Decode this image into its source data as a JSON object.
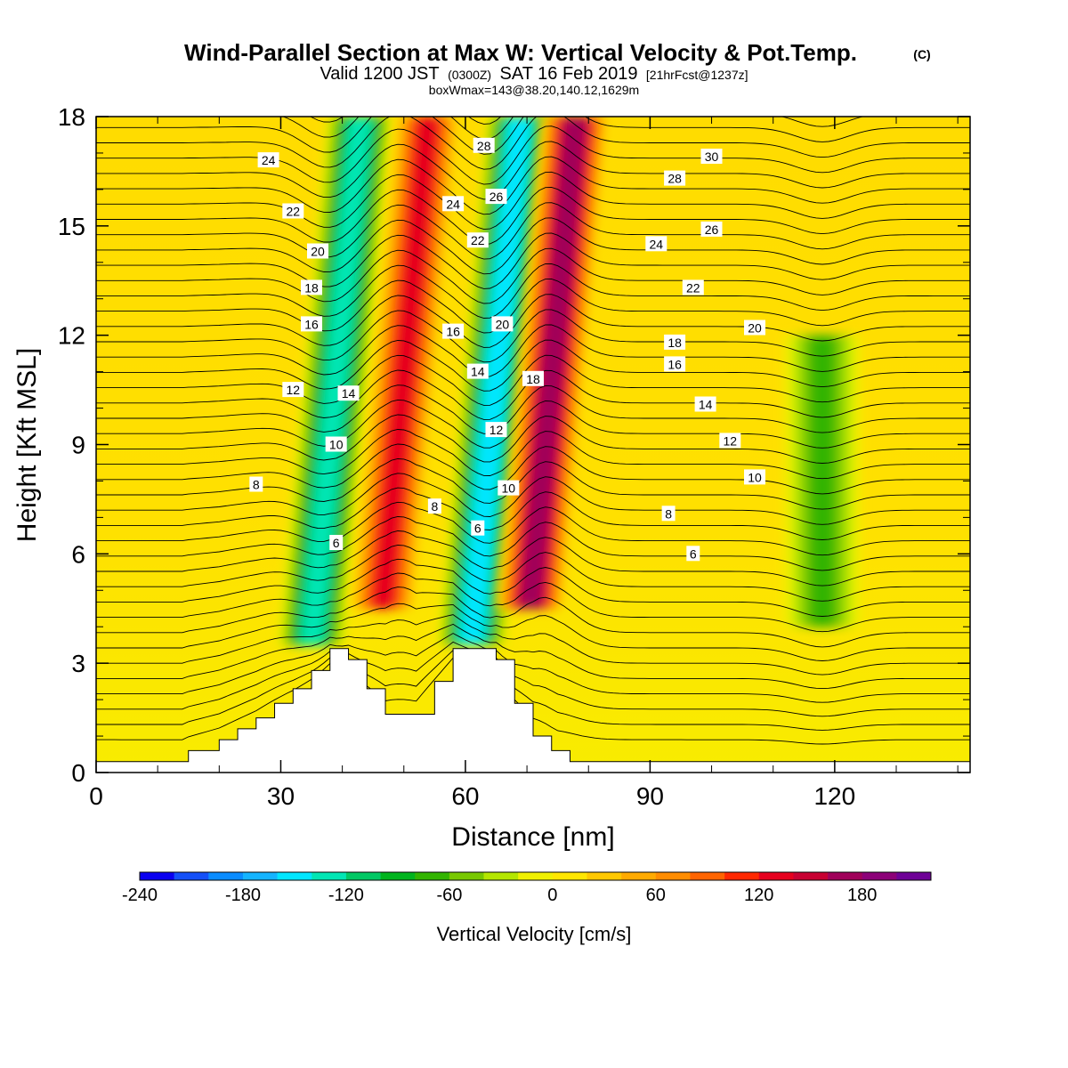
{
  "title": {
    "main": "Wind-Parallel Section at Max W: Vertical Velocity & Pot.Temp.",
    "copyright": "(C)",
    "line2_a": "Valid 1200 JST",
    "line2_b": "(0300Z)",
    "line2_c": "SAT 16 Feb 2019",
    "line2_d": "[21hrFcst@1237z]",
    "line3": "boxWmax=143@38.20,140.12,1629m"
  },
  "chart_data": {
    "type": "heatmap",
    "xlabel": "Distance [nm]",
    "ylabel": "Height [Kft MSL]",
    "xlim": [
      0,
      142
    ],
    "ylim": [
      0,
      18
    ],
    "x_ticks": [
      0,
      30,
      60,
      90,
      120
    ],
    "y_ticks": [
      0,
      3,
      6,
      9,
      12,
      15,
      18
    ],
    "x_tick_labels": [
      "0",
      "30",
      "60",
      "90",
      "120"
    ],
    "y_tick_labels": [
      "0",
      "3",
      "6",
      "9",
      "12",
      "15",
      "18"
    ],
    "colorbar": {
      "label": "Vertical Velocity [cm/s]",
      "min": -240,
      "max": 220,
      "step": 20,
      "tick_values": [
        -240,
        -180,
        -120,
        -60,
        0,
        60,
        120,
        180
      ],
      "tick_labels": [
        "-240",
        "-180",
        "-120",
        "-60",
        "0",
        "60",
        "120",
        "180"
      ],
      "colors": [
        "#0a00f0",
        "#1450f8",
        "#0a8cff",
        "#14b4ff",
        "#00e6ff",
        "#00e6b4",
        "#00c864",
        "#00b41e",
        "#32b400",
        "#78c800",
        "#b4e600",
        "#f0f000",
        "#ffe600",
        "#ffc800",
        "#ffaa00",
        "#ff8c00",
        "#ff6400",
        "#ff2800",
        "#e6001e",
        "#c80032",
        "#a0005a",
        "#8c0078",
        "#6e0096"
      ]
    },
    "terrain_kft": [
      [
        0,
        0.3
      ],
      [
        13,
        0.3
      ],
      [
        15,
        0.6
      ],
      [
        20,
        0.9
      ],
      [
        23,
        1.2
      ],
      [
        26,
        1.5
      ],
      [
        29,
        1.9
      ],
      [
        32,
        2.3
      ],
      [
        35,
        2.8
      ],
      [
        38,
        3.4
      ],
      [
        41,
        3.1
      ],
      [
        44,
        2.3
      ],
      [
        47,
        1.6
      ],
      [
        52,
        1.6
      ],
      [
        55,
        2.5
      ],
      [
        58,
        3.4
      ],
      [
        62,
        3.4
      ],
      [
        65,
        3.1
      ],
      [
        68,
        1.9
      ],
      [
        71,
        1.0
      ],
      [
        74,
        0.6
      ],
      [
        77,
        0.3
      ],
      [
        142,
        0.3
      ]
    ],
    "vertical_velocity_features_cms": [
      {
        "x_nm": 38,
        "w": -140
      },
      {
        "x_nm": 49,
        "w": 140
      },
      {
        "x_nm": 64,
        "w": -160
      },
      {
        "x_nm": 73,
        "w": 170
      },
      {
        "x_nm": 118,
        "w": -70
      }
    ],
    "theta_contour_labels": [
      {
        "text": "6",
        "x": 39,
        "y": 6.3
      },
      {
        "text": "6",
        "x": 62,
        "y": 6.7
      },
      {
        "text": "6",
        "x": 97,
        "y": 6.0
      },
      {
        "text": "8",
        "x": 26,
        "y": 7.9
      },
      {
        "text": "8",
        "x": 55,
        "y": 7.3
      },
      {
        "text": "8",
        "x": 93,
        "y": 7.1
      },
      {
        "text": "10",
        "x": 39,
        "y": 9.0
      },
      {
        "text": "10",
        "x": 67,
        "y": 7.8
      },
      {
        "text": "10",
        "x": 107,
        "y": 8.1
      },
      {
        "text": "12",
        "x": 32,
        "y": 10.5
      },
      {
        "text": "12",
        "x": 65,
        "y": 9.4
      },
      {
        "text": "12",
        "x": 103,
        "y": 9.1
      },
      {
        "text": "14",
        "x": 41,
        "y": 10.4
      },
      {
        "text": "14",
        "x": 62,
        "y": 11.0
      },
      {
        "text": "14",
        "x": 99,
        "y": 10.1
      },
      {
        "text": "16",
        "x": 35,
        "y": 12.3
      },
      {
        "text": "16",
        "x": 58,
        "y": 12.1
      },
      {
        "text": "16",
        "x": 94,
        "y": 11.2
      },
      {
        "text": "18",
        "x": 35,
        "y": 13.3
      },
      {
        "text": "18",
        "x": 71,
        "y": 10.8
      },
      {
        "text": "18",
        "x": 94,
        "y": 11.8
      },
      {
        "text": "20",
        "x": 36,
        "y": 14.3
      },
      {
        "text": "20",
        "x": 66,
        "y": 12.3
      },
      {
        "text": "20",
        "x": 107,
        "y": 12.2
      },
      {
        "text": "22",
        "x": 32,
        "y": 15.4
      },
      {
        "text": "22",
        "x": 62,
        "y": 14.6
      },
      {
        "text": "22",
        "x": 97,
        "y": 13.3
      },
      {
        "text": "24",
        "x": 28,
        "y": 16.8
      },
      {
        "text": "24",
        "x": 58,
        "y": 15.6
      },
      {
        "text": "24",
        "x": 91,
        "y": 14.5
      },
      {
        "text": "26",
        "x": 65,
        "y": 15.8
      },
      {
        "text": "26",
        "x": 100,
        "y": 14.9
      },
      {
        "text": "28",
        "x": 63,
        "y": 17.2
      },
      {
        "text": "28",
        "x": 94,
        "y": 16.3
      },
      {
        "text": "30",
        "x": 100,
        "y": 16.9
      }
    ],
    "grid": false
  }
}
